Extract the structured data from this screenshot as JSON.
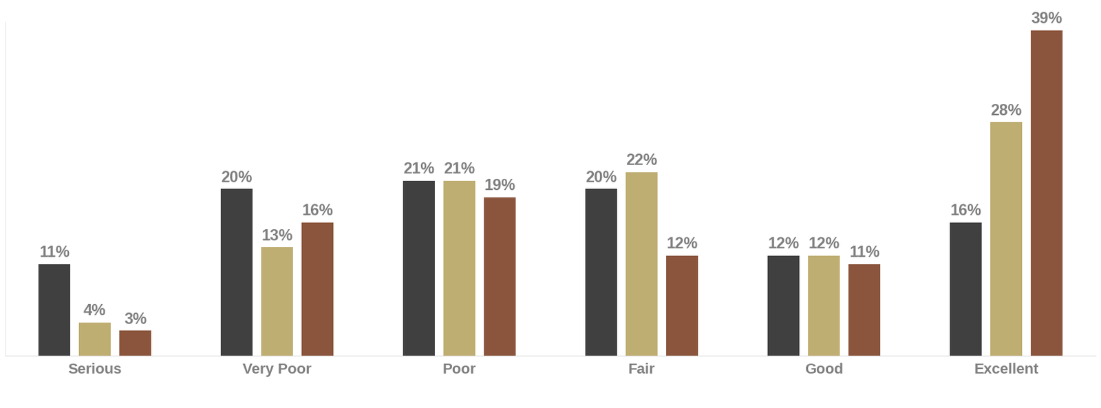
{
  "chart_data": {
    "type": "bar",
    "categories": [
      "Serious",
      "Very Poor",
      "Poor",
      "Fair",
      "Good",
      "Excellent"
    ],
    "series": [
      {
        "color": "#404040",
        "values": [
          11,
          20,
          21,
          20,
          12,
          16
        ],
        "value_labels": [
          "11%",
          "20%",
          "21%",
          "20%",
          "12%",
          "16%"
        ]
      },
      {
        "color": "#bfae72",
        "values": [
          4,
          13,
          21,
          22,
          12,
          28
        ],
        "value_labels": [
          "4%",
          "13%",
          "21%",
          "22%",
          "12%",
          "28%"
        ]
      },
      {
        "color": "#8b553d",
        "values": [
          3,
          16,
          19,
          12,
          11,
          39
        ],
        "value_labels": [
          "3%",
          "16%",
          "19%",
          "12%",
          "11%",
          "39%"
        ]
      }
    ],
    "ylim": [
      0,
      40
    ],
    "yticks": [],
    "grid": false,
    "data_labels": true,
    "tick_labels": "x"
  }
}
